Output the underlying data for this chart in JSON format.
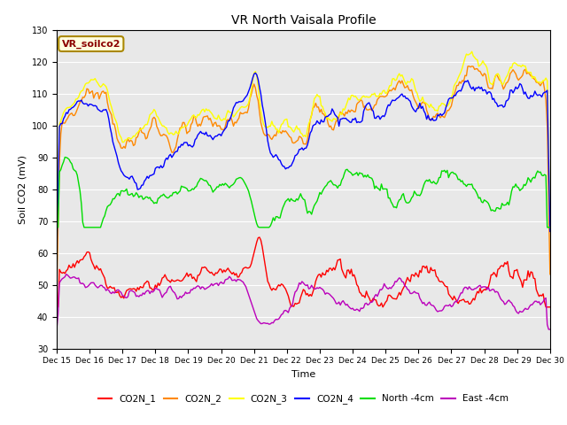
{
  "title": "VR North Vaisala Profile",
  "xlabel": "Time",
  "ylabel": "Soil CO2 (mV)",
  "ylim": [
    30,
    130
  ],
  "xlim": [
    0,
    360
  ],
  "annotation": "VR_soilco2",
  "tick_labels": [
    "Dec 15",
    "Dec 16",
    "Dec 17",
    "Dec 18",
    "Dec 19",
    "Dec 20",
    "Dec 21",
    "Dec 22",
    "Dec 23",
    "Dec 24",
    "Dec 25",
    "Dec 26",
    "Dec 27",
    "Dec 28",
    "Dec 29",
    "Dec 30"
  ],
  "tick_positions": [
    0,
    24,
    48,
    72,
    96,
    120,
    144,
    168,
    192,
    216,
    240,
    264,
    288,
    312,
    336,
    360
  ],
  "series_colors": {
    "CO2N_1": "#ff0000",
    "CO2N_2": "#ff8800",
    "CO2N_3": "#ffff00",
    "CO2N_4": "#0000ff",
    "North_4cm": "#00dd00",
    "East_4cm": "#bb00bb"
  },
  "yticks": [
    30,
    40,
    50,
    60,
    70,
    80,
    90,
    100,
    110,
    120,
    130
  ],
  "legend_labels": [
    "CO2N_1",
    "CO2N_2",
    "CO2N_3",
    "CO2N_4",
    "North -4cm",
    "East -4cm"
  ]
}
